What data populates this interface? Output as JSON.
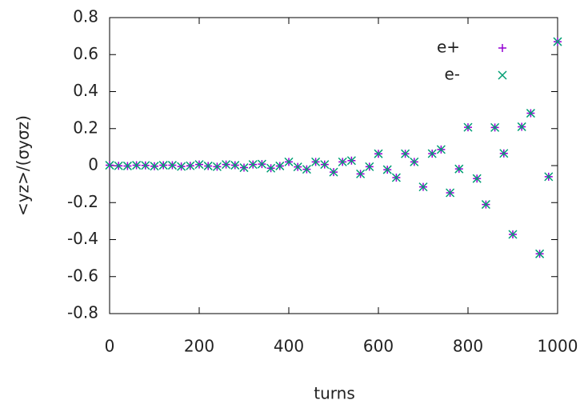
{
  "chart_data": {
    "type": "scatter",
    "xlabel": "turns",
    "ylabel": "<yz>/(σyσz)",
    "xlim": [
      0,
      1000
    ],
    "ylim": [
      -0.8,
      0.8
    ],
    "xticks": [
      0,
      200,
      400,
      600,
      800,
      1000
    ],
    "yticks": [
      -0.8,
      -0.6,
      -0.4,
      -0.2,
      0,
      0.2,
      0.4,
      0.6,
      0.8
    ],
    "legend_position": "upper-right",
    "x": [
      0,
      20,
      40,
      60,
      80,
      100,
      120,
      140,
      160,
      180,
      200,
      220,
      240,
      260,
      280,
      300,
      320,
      340,
      360,
      380,
      400,
      420,
      440,
      460,
      480,
      500,
      520,
      540,
      560,
      580,
      600,
      620,
      640,
      660,
      680,
      700,
      720,
      740,
      760,
      780,
      800,
      820,
      840,
      860,
      880,
      900,
      920,
      940,
      960,
      980,
      1000
    ],
    "series": [
      {
        "name": "e+",
        "color": "#9400d3",
        "marker": "plus",
        "values": [
          0.002,
          -0.001,
          -0.002,
          0.002,
          0.001,
          -0.003,
          0.002,
          0.002,
          -0.005,
          -0.001,
          0.006,
          -0.002,
          -0.006,
          0.006,
          0.002,
          -0.011,
          0.006,
          0.008,
          -0.014,
          -0.002,
          0.02,
          -0.007,
          -0.02,
          0.02,
          0.006,
          -0.035,
          0.02,
          0.027,
          -0.045,
          -0.006,
          0.064,
          -0.022,
          -0.065,
          0.064,
          0.02,
          -0.115,
          0.065,
          0.087,
          -0.147,
          -0.018,
          0.207,
          -0.07,
          -0.21,
          0.206,
          0.066,
          -0.372,
          0.21,
          0.283,
          -0.477,
          -0.06,
          0.67
        ]
      },
      {
        "name": "e-",
        "color": "#009e73",
        "marker": "cross",
        "values": [
          0.002,
          -0.001,
          -0.002,
          0.002,
          0.001,
          -0.003,
          0.002,
          0.002,
          -0.005,
          -0.001,
          0.006,
          -0.002,
          -0.006,
          0.006,
          0.002,
          -0.011,
          0.006,
          0.008,
          -0.014,
          -0.002,
          0.02,
          -0.007,
          -0.02,
          0.02,
          0.006,
          -0.035,
          0.02,
          0.027,
          -0.045,
          -0.006,
          0.064,
          -0.022,
          -0.065,
          0.064,
          0.02,
          -0.115,
          0.065,
          0.087,
          -0.147,
          -0.018,
          0.207,
          -0.07,
          -0.21,
          0.206,
          0.066,
          -0.372,
          0.21,
          0.283,
          -0.477,
          -0.06,
          0.67
        ]
      }
    ]
  }
}
